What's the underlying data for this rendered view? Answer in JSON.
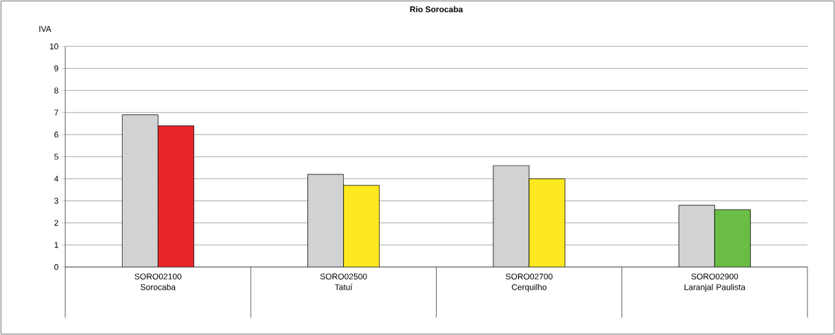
{
  "chart_data": {
    "type": "bar",
    "title": "Rio Sorocaba",
    "ylabel": "IVA",
    "categories": [
      "SORO02100 Sorocaba",
      "SORO02500 Tatuí",
      "SORO02700 Cerquilho",
      "SORO02900 Laranjal Paulista"
    ],
    "series": [
      {
        "color": "#d1d2d4",
        "values": [
          6.9,
          4.2,
          4.6,
          2.8
        ]
      },
      {
        "colors": [
          "#e82729",
          "#fde920",
          "#fde920",
          "#6abd45"
        ],
        "values": [
          6.4,
          3.7,
          4.0,
          2.6
        ]
      }
    ],
    "ylim": [
      0,
      10
    ],
    "yticks": [
      0,
      1,
      2,
      3,
      4,
      5,
      6,
      7,
      8,
      9,
      10
    ],
    "grid": "y"
  }
}
